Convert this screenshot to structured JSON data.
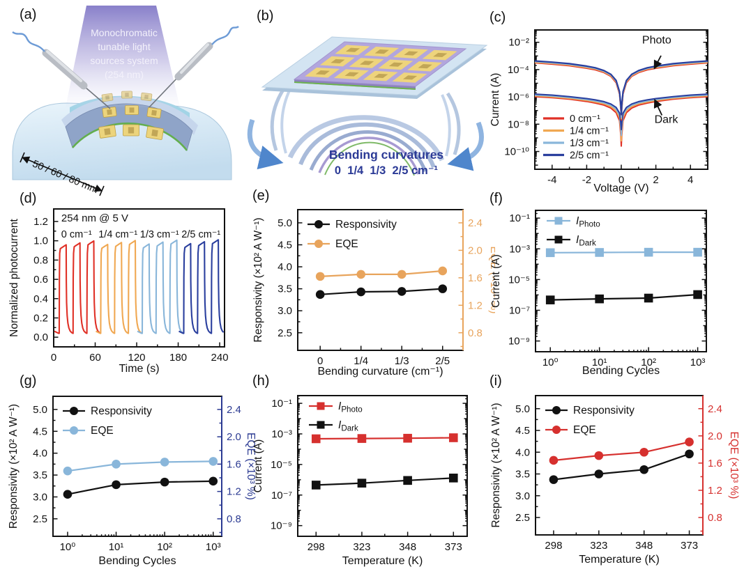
{
  "panel_labels": {
    "a": "(a)",
    "b": "(b)",
    "c": "(c)",
    "d": "(d)",
    "e": "(e)",
    "f": "(f)",
    "g": "(g)",
    "h": "(h)",
    "i": "(i)"
  },
  "colors": {
    "red": "#e03127",
    "orange": "#f0a852",
    "light_blue": "#89b6da",
    "navy": "#2a3f9e",
    "caption_navy": "#2b3a96",
    "crimson": "#d6302e",
    "black": "#111111"
  },
  "illustrations": {
    "a": {
      "light_source_lines": [
        "Monochromatic",
        "tunable light",
        "sources system",
        "(254 nm)"
      ],
      "dimension_label": "50 / 60 / 80 mm"
    },
    "b": {
      "caption_title": "Bending curvatures",
      "caption_values": "0  1/4  1/3  2/5 cm⁻¹"
    }
  },
  "chart_data": [
    {
      "id": "c",
      "type": "line",
      "xlabel": "Voltage (V)",
      "ylabel": "Current (A)",
      "x": {
        "scale": "linear",
        "lim": [
          -5,
          5
        ],
        "ticks": [
          -4,
          -2,
          0,
          2,
          4
        ],
        "tick_labels": [
          "-4",
          "-2",
          "0",
          "2",
          "4"
        ],
        "minor": [
          -3,
          -1,
          1,
          3
        ]
      },
      "y": {
        "scale": "log",
        "lim": [
          5e-12,
          0.08
        ],
        "ticks": [
          0.01,
          0.0001,
          1e-06,
          1e-08,
          1e-10
        ],
        "tick_labels": [
          "10⁻²",
          "10⁻⁴",
          "10⁻⁶",
          "10⁻⁸",
          "10⁻¹⁰"
        ],
        "mirror": true
      },
      "x_values": [
        -5,
        -4,
        -3,
        -2,
        -1.5,
        -1,
        -0.6,
        -0.3,
        -0.1,
        -0.03,
        0,
        0.03,
        0.1,
        0.3,
        0.6,
        1,
        1.5,
        2,
        3,
        4,
        5
      ],
      "series": [
        {
          "name": "0 cm⁻¹ dark",
          "color": "#e03127",
          "lw": 2,
          "y": [
            1.05e-06,
            8.8e-07,
            6.8e-07,
            4.6e-07,
            3.5e-07,
            2.5e-07,
            1.5e-07,
            7e-08,
            1.8e-08,
            1.5e-09,
            2.5e-10,
            1.5e-09,
            1.8e-08,
            7e-08,
            1.5e-07,
            2.5e-07,
            3.5e-07,
            4.6e-07,
            6.8e-07,
            8.8e-07,
            1.05e-06
          ]
        },
        {
          "name": "1/4 cm⁻¹ dark",
          "color": "#f0a852",
          "lw": 2,
          "y": [
            1.2e-06,
            1e-06,
            7.8e-07,
            5.4e-07,
            4.2e-07,
            3.1e-07,
            1.9e-07,
            1e-07,
            3e-08,
            3e-09,
            6e-10,
            3e-09,
            3e-08,
            1e-07,
            1.9e-07,
            3.1e-07,
            4.2e-07,
            5.4e-07,
            7.8e-07,
            1e-06,
            1.2e-06
          ]
        },
        {
          "name": "1/3 cm⁻¹ dark",
          "color": "#89b6da",
          "lw": 2,
          "y": [
            1.35e-06,
            1.15e-06,
            9e-07,
            6.3e-07,
            5e-07,
            3.7e-07,
            2.4e-07,
            1.3e-07,
            4.5e-08,
            6e-09,
            1.5e-09,
            6e-09,
            4.5e-08,
            1.3e-07,
            2.4e-07,
            3.7e-07,
            5e-07,
            6.3e-07,
            9e-07,
            1.15e-06,
            1.35e-06
          ]
        },
        {
          "name": "2/5 cm⁻¹ dark",
          "color": "#2a3f9e",
          "lw": 2,
          "y": [
            1.6e-06,
            1.35e-06,
            1.05e-06,
            7.5e-07,
            6e-07,
            4.5e-07,
            3e-07,
            1.7e-07,
            6.5e-08,
            1.3e-08,
            4e-09,
            1.3e-08,
            6.5e-08,
            1.7e-07,
            3e-07,
            4.5e-07,
            6e-07,
            7.5e-07,
            1.05e-06,
            1.35e-06,
            1.6e-06
          ]
        },
        {
          "name": "0 cm⁻¹ photo",
          "color": "#e03127",
          "lw": 2,
          "y": [
            0.00031,
            0.00025,
            0.00019,
            0.000125,
            9.5e-05,
            6e-05,
            3.2e-05,
            1.1e-05,
            1.6e-06,
            1.2e-07,
            2e-08,
            1.2e-07,
            1.6e-06,
            1.1e-05,
            3.2e-05,
            6e-05,
            9.5e-05,
            0.000125,
            0.00019,
            0.00025,
            0.00031
          ]
        },
        {
          "name": "1/4 cm⁻¹ photo",
          "color": "#f0a852",
          "lw": 2,
          "y": [
            0.00034,
            0.00028,
            0.000215,
            0.00014,
            0.00011,
            6.8e-05,
            3.6e-05,
            1.3e-05,
            1.9e-06,
            1.5e-07,
            2.5e-08,
            1.5e-07,
            1.9e-06,
            1.3e-05,
            3.6e-05,
            6.8e-05,
            0.00011,
            0.00014,
            0.000215,
            0.00028,
            0.00034
          ]
        },
        {
          "name": "1/3 cm⁻¹ photo",
          "color": "#89b6da",
          "lw": 2,
          "y": [
            0.000385,
            0.00031,
            0.00024,
            0.00016,
            0.00012,
            7.6e-05,
            4.1e-05,
            1.45e-05,
            2.1e-06,
            2e-07,
            3.2e-08,
            2e-07,
            2.1e-06,
            1.45e-05,
            4.1e-05,
            7.6e-05,
            0.00012,
            0.00016,
            0.00024,
            0.00031,
            0.000385
          ]
        },
        {
          "name": "2/5 cm⁻¹ photo",
          "color": "#2a3f9e",
          "lw": 2.2,
          "y": [
            0.00043,
            0.00035,
            0.00027,
            0.00018,
            0.000135,
            8.5e-05,
            4.5e-05,
            1.6e-05,
            2.4e-06,
            2.6e-07,
            5e-08,
            2.6e-07,
            2.4e-06,
            1.6e-05,
            4.5e-05,
            8.5e-05,
            0.000135,
            0.00018,
            0.00027,
            0.00035,
            0.00043
          ]
        }
      ],
      "legend": {
        "items": [
          {
            "label": "0 cm⁻¹",
            "color": "#e03127"
          },
          {
            "label": "1/4 cm⁻¹",
            "color": "#f0a852"
          },
          {
            "label": "1/3 cm⁻¹",
            "color": "#89b6da"
          },
          {
            "label": "2/5 cm⁻¹",
            "color": "#2a3f9e"
          }
        ]
      },
      "annotations": [
        {
          "text": "Photo",
          "x": 2.05,
          "y": 0.008,
          "arrow_from": [
            2.3,
            0.00105
          ],
          "arrow_to": [
            1.93,
            0.000135
          ]
        },
        {
          "text": "Dark",
          "x": 2.6,
          "y": 1.2e-08,
          "arrow_from": [
            2.35,
            4.5e-08
          ],
          "arrow_to": [
            1.95,
            5.5e-07
          ]
        }
      ]
    },
    {
      "id": "d",
      "type": "pulse",
      "xlabel": "Time (s)",
      "ylabel": "Normalized photocurrent",
      "note": "254 nm @ 5 V",
      "x": {
        "scale": "linear",
        "lim": [
          0,
          247
        ],
        "ticks": [
          0,
          60,
          120,
          180,
          240
        ],
        "tick_labels": [
          "0",
          "60",
          "120",
          "180",
          "240"
        ],
        "minor": [
          30,
          90,
          150,
          210
        ]
      },
      "y": {
        "scale": "linear",
        "lim": [
          -0.1,
          1.33
        ],
        "ticks": [
          0,
          0.2,
          0.4,
          0.6,
          0.8,
          1,
          1.2
        ],
        "tick_labels": [
          "0.0",
          "0.2",
          "0.4",
          "0.6",
          "0.8",
          "1.0",
          "1.2"
        ],
        "minor": [
          0.1,
          0.3,
          0.5,
          0.7,
          0.9,
          1.1
        ]
      },
      "pulse": {
        "on_s": 10,
        "period_s": 20,
        "count": 3,
        "peak": 1.0,
        "groups": [
          {
            "label": "0 cm⁻¹",
            "color": "#e03127",
            "start_s": 8
          },
          {
            "label": "1/4 cm⁻¹",
            "color": "#f0a852",
            "start_s": 68
          },
          {
            "label": "1/3 cm⁻¹",
            "color": "#89b6da",
            "start_s": 128
          },
          {
            "label": "2/5 cm⁻¹",
            "color": "#2a3f9e",
            "start_s": 188
          }
        ]
      }
    },
    {
      "id": "e",
      "type": "scatter-line",
      "xlabel": "Bending curvature (cm⁻¹)",
      "ylabel": "Responsivity (×10² A W⁻¹)",
      "x": {
        "scale": "category",
        "categories": [
          "0",
          "1/4",
          "1/3",
          "2/5"
        ],
        "lim": [
          -0.55,
          3.5
        ]
      },
      "y": {
        "scale": "linear",
        "lim": [
          2.1,
          5.3
        ],
        "ticks": [
          2.5,
          3,
          3.5,
          4,
          4.5,
          5
        ],
        "tick_labels": [
          "2.5",
          "3.0",
          "3.5",
          "4.0",
          "4.5",
          "5.0"
        ],
        "minor": [
          2.75,
          3.25,
          3.75,
          4.25,
          4.75
        ]
      },
      "y2": {
        "scale": "linear",
        "lim": [
          0.544,
          2.592
        ],
        "ticks": [
          0.8,
          1.2,
          1.6,
          2,
          2.4
        ],
        "tick_labels": [
          "0.8",
          "1.2",
          "1.6",
          "2.0",
          "2.4"
        ],
        "minor": [
          0.6,
          1,
          1.4,
          1.8,
          2.2
        ],
        "label": "EQE (×10³ %)",
        "color": "#e8a45c"
      },
      "series": [
        {
          "name": "Responsivity",
          "color": "#111111",
          "marker": "circle",
          "y": [
            3.37,
            3.43,
            3.44,
            3.5
          ]
        },
        {
          "name": "EQE",
          "color": "#e8a45c",
          "marker": "circle",
          "axis": "y2",
          "y": [
            1.62,
            1.65,
            1.65,
            1.7
          ]
        }
      ],
      "legend": {
        "items": [
          {
            "label": "Responsivity",
            "color": "#111111",
            "marker": "circle"
          },
          {
            "label": "EQE",
            "color": "#e8a45c",
            "marker": "circle"
          }
        ]
      }
    },
    {
      "id": "f",
      "type": "scatter-line",
      "xlabel": "Bending Cycles",
      "ylabel": "Current (A)",
      "x": {
        "scale": "log",
        "lim": [
          0.5,
          1500
        ],
        "ticks": [
          1,
          10,
          100,
          1000
        ],
        "tick_labels": [
          "10⁰",
          "10¹",
          "10²",
          "10³"
        ]
      },
      "y": {
        "scale": "log",
        "lim": [
          2e-10,
          0.32
        ],
        "ticks": [
          0.1,
          0.001,
          1e-05,
          1e-07,
          1e-09
        ],
        "tick_labels": [
          "10⁻¹",
          "10⁻³",
          "10⁻⁵",
          "10⁻⁷",
          "10⁻⁹"
        ],
        "mirror": true
      },
      "x_values": [
        1,
        10,
        100,
        1000
      ],
      "series": [
        {
          "name": "I_Photo",
          "label_main": "I",
          "label_sub": "Photo",
          "color": "#89b6da",
          "marker": "square",
          "y": [
            0.00056,
            0.00058,
            0.0006,
            0.0006
          ]
        },
        {
          "name": "I_Dark",
          "label_main": "I",
          "label_sub": "Dark",
          "color": "#111111",
          "marker": "square",
          "y": [
            4.7e-07,
            5.5e-07,
            6.2e-07,
            1.05e-06
          ]
        }
      ],
      "legend": {
        "items": [
          {
            "main": "I",
            "sub": "Photo",
            "color": "#89b6da",
            "marker": "square"
          },
          {
            "main": "I",
            "sub": "Dark",
            "color": "#111111",
            "marker": "square"
          }
        ]
      }
    },
    {
      "id": "g",
      "type": "scatter-line",
      "xlabel": "Bending Cycles",
      "ylabel": "Responsivity (×10² A W⁻¹)",
      "x": {
        "scale": "log",
        "lim": [
          0.5,
          1500
        ],
        "ticks": [
          1,
          10,
          100,
          1000
        ],
        "tick_labels": [
          "10⁰",
          "10¹",
          "10²",
          "10³"
        ]
      },
      "y": {
        "scale": "linear",
        "lim": [
          2.1,
          5.3
        ],
        "ticks": [
          2.5,
          3,
          3.5,
          4,
          4.5,
          5
        ],
        "tick_labels": [
          "2.5",
          "3.0",
          "3.5",
          "4.0",
          "4.5",
          "5.0"
        ],
        "minor": [
          2.75,
          3.25,
          3.75,
          4.25,
          4.75
        ]
      },
      "y2": {
        "scale": "linear",
        "lim": [
          0.544,
          2.592
        ],
        "ticks": [
          0.8,
          1.2,
          1.6,
          2,
          2.4
        ],
        "tick_labels": [
          "0.8",
          "1.2",
          "1.6",
          "2.0",
          "2.4"
        ],
        "minor": [
          0.6,
          1,
          1.4,
          1.8,
          2.2
        ],
        "label": "EQE (×10³ %)",
        "color": "#2b3a92"
      },
      "x_values": [
        1,
        10,
        100,
        1000
      ],
      "series": [
        {
          "name": "Responsivity",
          "color": "#111111",
          "marker": "circle",
          "y": [
            3.06,
            3.28,
            3.34,
            3.36
          ]
        },
        {
          "name": "EQE",
          "color": "#89b6da",
          "marker": "circle",
          "axis": "y2",
          "y": [
            1.5,
            1.6,
            1.63,
            1.64
          ]
        }
      ],
      "legend": {
        "items": [
          {
            "label": "Responsivity",
            "color": "#111111",
            "marker": "circle"
          },
          {
            "label": "EQE",
            "color": "#89b6da",
            "marker": "circle"
          }
        ]
      }
    },
    {
      "id": "h",
      "type": "scatter-line",
      "xlabel": "Temperature (K)",
      "ylabel": "Current (A)",
      "x": {
        "scale": "category",
        "categories": [
          "298",
          "323",
          "348",
          "373"
        ],
        "lim": [
          -0.4,
          3.3
        ]
      },
      "y": {
        "scale": "log",
        "lim": [
          2e-10,
          0.32
        ],
        "ticks": [
          0.1,
          0.001,
          1e-05,
          1e-07,
          1e-09
        ],
        "tick_labels": [
          "10⁻¹",
          "10⁻³",
          "10⁻⁵",
          "10⁻⁷",
          "10⁻⁹"
        ],
        "mirror": true
      },
      "series": [
        {
          "name": "I_Photo",
          "label_main": "I",
          "label_sub": "Photo",
          "color": "#d6302e",
          "marker": "square",
          "y": [
            0.00048,
            0.0005,
            0.00052,
            0.00056
          ]
        },
        {
          "name": "I_Dark",
          "label_main": "I",
          "label_sub": "Dark",
          "color": "#111111",
          "marker": "square",
          "y": [
            4.5e-07,
            6e-07,
            9e-07,
            1.3e-06
          ]
        }
      ],
      "legend": {
        "items": [
          {
            "main": "I",
            "sub": "Photo",
            "color": "#d6302e",
            "marker": "square"
          },
          {
            "main": "I",
            "sub": "Dark",
            "color": "#111111",
            "marker": "square"
          }
        ]
      }
    },
    {
      "id": "i",
      "type": "scatter-line",
      "xlabel": "Temperature (K)",
      "ylabel": "Responsivity (×10² A W⁻¹)",
      "x": {
        "scale": "category",
        "categories": [
          "298",
          "323",
          "348",
          "373"
        ],
        "lim": [
          -0.4,
          3.3
        ]
      },
      "y": {
        "scale": "linear",
        "lim": [
          2.1,
          5.3
        ],
        "ticks": [
          2.5,
          3,
          3.5,
          4,
          4.5,
          5
        ],
        "tick_labels": [
          "2.5",
          "3.0",
          "3.5",
          "4.0",
          "4.5",
          "5.0"
        ],
        "minor": [
          2.75,
          3.25,
          3.75,
          4.25,
          4.75
        ]
      },
      "y2": {
        "scale": "linear",
        "lim": [
          0.544,
          2.592
        ],
        "ticks": [
          0.8,
          1.2,
          1.6,
          2,
          2.4
        ],
        "tick_labels": [
          "0.8",
          "1.2",
          "1.6",
          "2.0",
          "2.4"
        ],
        "minor": [
          0.6,
          1,
          1.4,
          1.8,
          2.2
        ],
        "label": "EQE (×10³ %)",
        "color": "#d6302e"
      },
      "series": [
        {
          "name": "Responsivity",
          "color": "#111111",
          "marker": "circle",
          "y": [
            3.37,
            3.5,
            3.6,
            3.96
          ]
        },
        {
          "name": "EQE",
          "color": "#d6302e",
          "marker": "circle",
          "axis": "y2",
          "y": [
            1.64,
            1.71,
            1.76,
            1.91
          ]
        }
      ],
      "legend": {
        "items": [
          {
            "label": "Responsivity",
            "color": "#111111",
            "marker": "circle"
          },
          {
            "label": "EQE",
            "color": "#d6302e",
            "marker": "circle"
          }
        ]
      }
    }
  ]
}
